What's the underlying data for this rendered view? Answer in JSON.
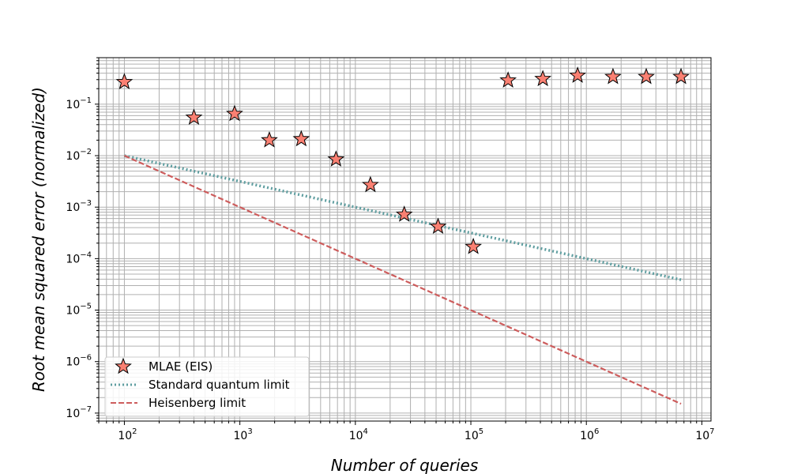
{
  "chart_data": {
    "type": "scatter",
    "xlabel": "Number of queries",
    "ylabel": "Root mean squared error (normalized)",
    "xscale": "log",
    "yscale": "log",
    "xlim": [
      60,
      12000000
    ],
    "ylim": [
      7e-08,
      0.8
    ],
    "grid": "major and minor",
    "legend_position": "lower-left",
    "x_ticks": [
      {
        "value": 100,
        "base": "10",
        "exp": "2"
      },
      {
        "value": 1000,
        "base": "10",
        "exp": "3"
      },
      {
        "value": 10000,
        "base": "10",
        "exp": "4"
      },
      {
        "value": 100000,
        "base": "10",
        "exp": "5"
      },
      {
        "value": 1000000,
        "base": "10",
        "exp": "6"
      },
      {
        "value": 10000000,
        "base": "10",
        "exp": "7"
      }
    ],
    "y_ticks": [
      {
        "value": 1e-07,
        "base": "10",
        "exp": "−7"
      },
      {
        "value": 1e-06,
        "base": "10",
        "exp": "−6"
      },
      {
        "value": 1e-05,
        "base": "10",
        "exp": "−5"
      },
      {
        "value": 0.0001,
        "base": "10",
        "exp": "−4"
      },
      {
        "value": 0.001,
        "base": "10",
        "exp": "−3"
      },
      {
        "value": 0.01,
        "base": "10",
        "exp": "−2"
      },
      {
        "value": 0.1,
        "base": "10",
        "exp": "−1"
      }
    ],
    "series": [
      {
        "name": "MLAE (EIS)",
        "kind": "scatter",
        "marker": "star",
        "color": "#fa8072",
        "edge_color": "#000000",
        "points": [
          [
            100,
            0.27
          ],
          [
            400,
            0.055
          ],
          [
            900,
            0.065
          ],
          [
            1800,
            0.02
          ],
          [
            3400,
            0.021
          ],
          [
            6800,
            0.0085
          ],
          [
            13500,
            0.0027
          ],
          [
            26500,
            0.00072
          ],
          [
            52000,
            0.00042
          ],
          [
            105000,
            0.00017
          ],
          [
            210000,
            0.29
          ],
          [
            420000,
            0.31
          ],
          [
            840000,
            0.36
          ],
          [
            1700000,
            0.34
          ],
          [
            3300000,
            0.34
          ],
          [
            6600000,
            0.34
          ]
        ]
      },
      {
        "name": "Standard quantum limit",
        "kind": "line",
        "style": "dotted",
        "color": "#5f9ea0",
        "points": [
          [
            100,
            0.01
          ],
          [
            6600000,
            3.89e-05
          ]
        ]
      },
      {
        "name": "Heisenberg limit",
        "kind": "line",
        "style": "dashed",
        "color": "#cd5c5c",
        "points": [
          [
            100,
            0.01
          ],
          [
            6600000,
            1.515e-07
          ]
        ]
      }
    ]
  }
}
